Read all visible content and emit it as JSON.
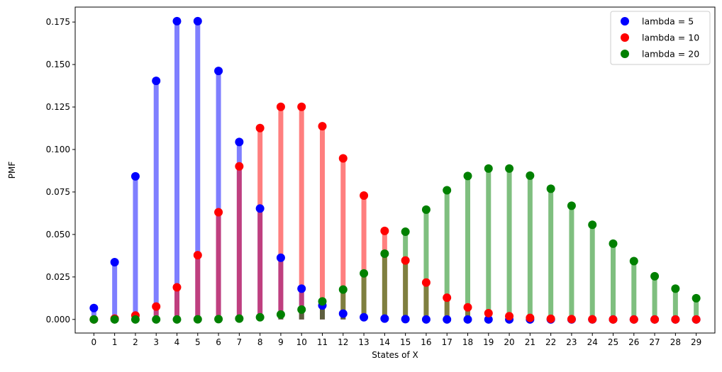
{
  "chart_data": {
    "type": "stem",
    "xlabel": "States of X",
    "ylabel": "PMF",
    "ylim": [
      -0.008,
      0.1838
    ],
    "xlim": [
      -0.9,
      29.9
    ],
    "grid": false,
    "legend_placement": "top-right",
    "x": [
      0,
      1,
      2,
      3,
      4,
      5,
      6,
      7,
      8,
      9,
      10,
      11,
      12,
      13,
      14,
      15,
      16,
      17,
      18,
      19,
      20,
      21,
      22,
      23,
      24,
      25,
      26,
      27,
      28,
      29
    ],
    "xticks": [
      "0",
      "1",
      "2",
      "3",
      "4",
      "5",
      "6",
      "7",
      "8",
      "9",
      "10",
      "11",
      "12",
      "13",
      "14",
      "15",
      "16",
      "17",
      "18",
      "19",
      "20",
      "21",
      "22",
      "23",
      "24",
      "25",
      "26",
      "27",
      "28",
      "29"
    ],
    "yticks": [
      "0.000",
      "0.025",
      "0.050",
      "0.075",
      "0.100",
      "0.125",
      "0.150",
      "0.175"
    ],
    "ytick_values": [
      0,
      0.025,
      0.05,
      0.075,
      0.1,
      0.125,
      0.15,
      0.175
    ],
    "series": [
      {
        "name": "lambda = 5",
        "color": "#0000ff",
        "values": [
          0.0067,
          0.0337,
          0.0842,
          0.1404,
          0.1755,
          0.1755,
          0.1462,
          0.1044,
          0.0653,
          0.0363,
          0.0181,
          0.0082,
          0.0034,
          0.0013,
          0.0005,
          0.0002,
          0.0,
          0.0,
          0.0,
          0.0,
          0.0,
          0.0,
          0.0,
          0.0,
          0.0,
          0.0,
          0.0,
          0.0,
          0.0,
          0.0
        ]
      },
      {
        "name": "lambda = 10",
        "color": "#ff0000",
        "values": [
          0.0,
          0.0005,
          0.0023,
          0.0076,
          0.0189,
          0.0378,
          0.0631,
          0.0901,
          0.1126,
          0.1251,
          0.1251,
          0.1137,
          0.0948,
          0.0729,
          0.0521,
          0.0347,
          0.0217,
          0.0128,
          0.0071,
          0.0037,
          0.0019,
          0.0009,
          0.0004,
          0.0002,
          0.0001,
          0.0,
          0.0,
          0.0,
          0.0,
          0.0
        ]
      },
      {
        "name": "lambda = 20",
        "color": "#008000",
        "values": [
          0.0,
          0.0,
          0.0,
          0.0,
          0.0,
          0.0001,
          0.0002,
          0.0005,
          0.0013,
          0.0029,
          0.0058,
          0.0106,
          0.0176,
          0.0271,
          0.0387,
          0.0516,
          0.0646,
          0.076,
          0.0844,
          0.0888,
          0.0888,
          0.0846,
          0.0769,
          0.0669,
          0.0557,
          0.0446,
          0.0343,
          0.0254,
          0.0181,
          0.0125
        ]
      }
    ]
  }
}
